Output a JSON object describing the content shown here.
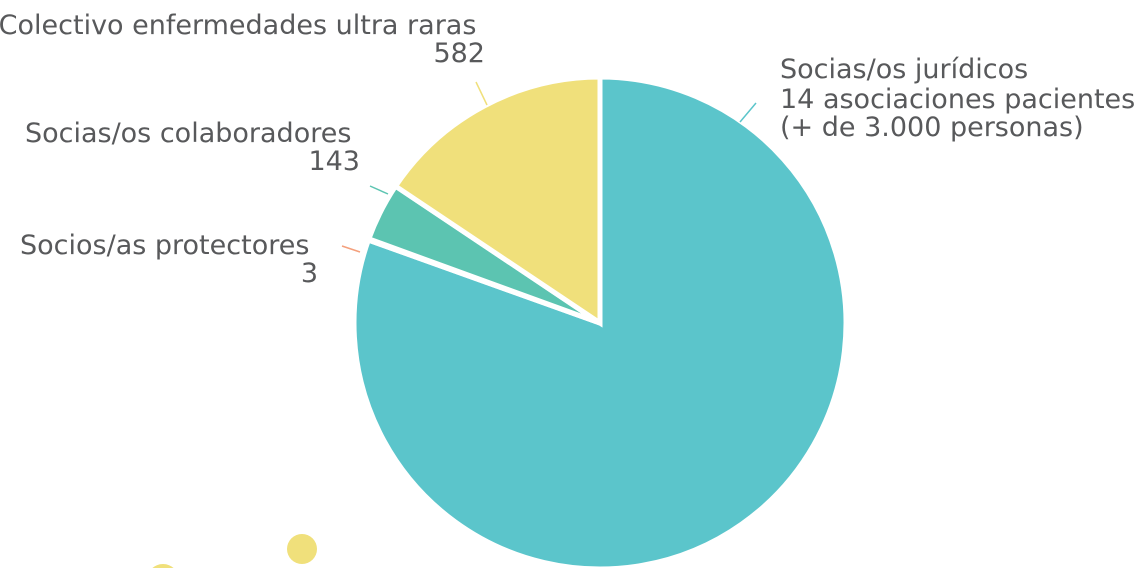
{
  "chart_data": {
    "type": "pie",
    "series": [
      {
        "values": [
          3000,
          3,
          143,
          582
        ],
        "colors": [
          "#5bc5cb",
          "#f4a07d",
          "#5cc4b1",
          "#f0e07b"
        ]
      }
    ],
    "labels": [
      {
        "lines": [
          "Socias/os jurídicos",
          "14 asociaciones pacientes",
          "(+ de 3.000 personas)"
        ]
      },
      {
        "lines": [
          "Socios/as protectores",
          "3"
        ]
      },
      {
        "lines": [
          "Socias/os colaboradores",
          "143"
        ]
      },
      {
        "lines": [
          "Colectivo enfermedades ultra raras",
          "582"
        ]
      }
    ],
    "decorations": {
      "dot_color": "#f0e07b"
    }
  }
}
